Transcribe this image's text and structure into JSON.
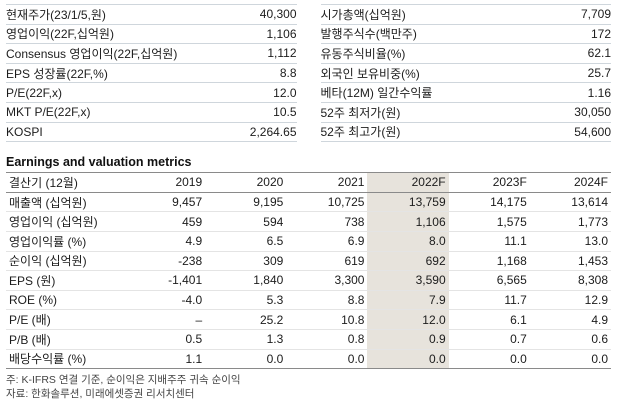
{
  "info": {
    "left": [
      {
        "label": "현재주가(23/1/5,원)",
        "value": "40,300"
      },
      {
        "label": "영업이익(22F,십억원)",
        "value": "1,106"
      },
      {
        "label": "Consensus 영업이익(22F,십억원)",
        "value": "1,112"
      },
      {
        "label": "EPS 성장률(22F,%)",
        "value": "8.8"
      },
      {
        "label": "P/E(22F,x)",
        "value": "12.0"
      },
      {
        "label": "MKT P/E(22F,x)",
        "value": "10.5"
      },
      {
        "label": "KOSPI",
        "value": "2,264.65"
      }
    ],
    "right": [
      {
        "label": "시가총액(십억원)",
        "value": "7,709"
      },
      {
        "label": "발행주식수(백만주)",
        "value": "172"
      },
      {
        "label": "유동주식비율(%)",
        "value": "62.1"
      },
      {
        "label": "외국인 보유비중(%)",
        "value": "25.7"
      },
      {
        "label": "베타(12M) 일간수익률",
        "value": "1.16"
      },
      {
        "label": "52주 최저가(원)",
        "value": "30,050"
      },
      {
        "label": "52주 최고가(원)",
        "value": "54,600"
      }
    ]
  },
  "section": {
    "title": "Earnings and valuation metrics"
  },
  "table": {
    "columns": [
      "결산기 (12월)",
      "2019",
      "2020",
      "2021",
      "2022F",
      "2023F",
      "2024F"
    ],
    "highlight_column": 4,
    "rows": [
      {
        "label": "매출액 (십억원)",
        "values": [
          "9,457",
          "9,195",
          "10,725",
          "13,759",
          "14,175",
          "13,614"
        ]
      },
      {
        "label": "영업이익 (십억원)",
        "values": [
          "459",
          "594",
          "738",
          "1,106",
          "1,575",
          "1,773"
        ]
      },
      {
        "label": "영업이익률 (%)",
        "values": [
          "4.9",
          "6.5",
          "6.9",
          "8.0",
          "11.1",
          "13.0"
        ]
      },
      {
        "label": "순이익 (십억원)",
        "values": [
          "-238",
          "309",
          "619",
          "692",
          "1,168",
          "1,453"
        ]
      },
      {
        "label": "EPS (원)",
        "values": [
          "-1,401",
          "1,840",
          "3,300",
          "3,590",
          "6,565",
          "8,308"
        ]
      },
      {
        "label": "ROE (%)",
        "values": [
          "-4.0",
          "5.3",
          "8.8",
          "7.9",
          "11.7",
          "12.9"
        ]
      },
      {
        "label": "P/E (배)",
        "values": [
          "–",
          "25.2",
          "10.8",
          "12.0",
          "6.1",
          "4.9"
        ]
      },
      {
        "label": "P/B (배)",
        "values": [
          "0.5",
          "1.3",
          "0.8",
          "0.9",
          "0.7",
          "0.6"
        ]
      },
      {
        "label": "배당수익률 (%)",
        "values": [
          "1.1",
          "0.0",
          "0.0",
          "0.0",
          "0.0",
          "0.0"
        ]
      }
    ]
  },
  "notes": [
    "주: K-IFRS 연결 기준, 순이익은 지배주주 귀속 순이익",
    "자료: 한화솔루션, 미래에셋증권 리서치센터"
  ],
  "colors": {
    "highlight_column": "#e7e3dc",
    "light_line": "#cfd6dc",
    "dark_line": "#8a8a8a"
  }
}
